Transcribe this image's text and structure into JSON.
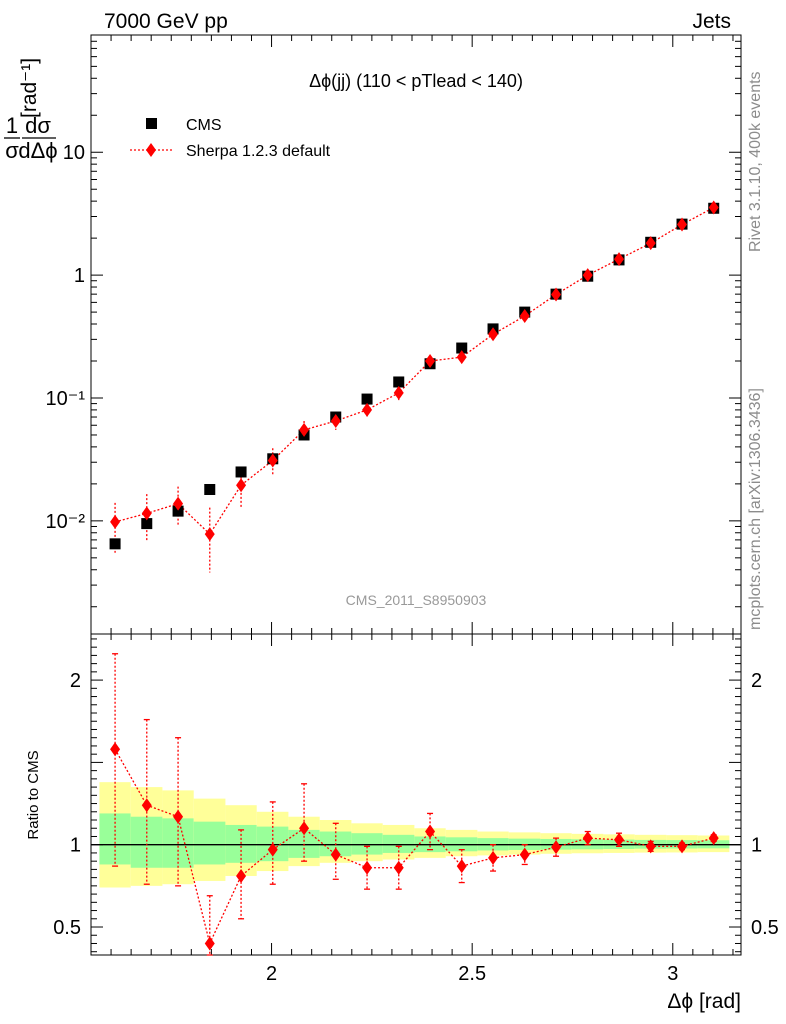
{
  "header": {
    "left": "7000 GeV pp",
    "right": "Jets"
  },
  "side_labels": {
    "rivet": "Rivet 3.1.10,  400k events",
    "mcplots": "mcplots.cern.ch [arXiv:1306.3436]"
  },
  "main_plot": {
    "title": "Δϕ(jj) (110 < pTlead <  140)",
    "analysis_label": "CMS_2011_S8950903",
    "ylabel_unit": "[rad⁻¹]",
    "yaxis_parts": {
      "num": "1",
      "den": "σ",
      "d_num": "dσ",
      "d_den": "dΔϕ"
    },
    "legend": [
      {
        "label": "CMS",
        "marker": "square",
        "color": "#000000"
      },
      {
        "label": "Sherpa 1.2.3 default",
        "marker": "diamond",
        "color": "#ff0000"
      }
    ]
  },
  "ratio_plot": {
    "ylabel": "Ratio to CMS"
  },
  "x_axis_label": "Δϕ [rad]",
  "chart_data": [
    {
      "type": "scatter",
      "scale_y": "log",
      "xlim": [
        1.55,
        3.17
      ],
      "ylim": [
        0.0012,
        90
      ],
      "y_tick_labels": [
        {
          "text": "10⁻²",
          "value": 0.01
        },
        {
          "text": "10⁻¹",
          "value": 0.1
        },
        {
          "text": "1",
          "value": 1
        },
        {
          "text": "10",
          "value": 10
        }
      ],
      "x": [
        1.61,
        1.689,
        1.767,
        1.846,
        1.924,
        2.003,
        2.081,
        2.16,
        2.238,
        2.317,
        2.395,
        2.474,
        2.552,
        2.631,
        2.709,
        2.788,
        2.866,
        2.945,
        3.023,
        3.102
      ],
      "series": [
        {
          "name": "CMS",
          "values": [
            0.0065,
            0.0095,
            0.012,
            0.018,
            0.025,
            0.032,
            0.05,
            0.07,
            0.098,
            0.135,
            0.19,
            0.255,
            0.365,
            0.5,
            0.7,
            0.98,
            1.33,
            1.85,
            2.6,
            3.5
          ]
        },
        {
          "name": "Sherpa 1.2.3 default",
          "values": [
            0.0098,
            0.0115,
            0.0138,
            0.0078,
            0.0195,
            0.031,
            0.055,
            0.065,
            0.08,
            0.11,
            0.2,
            0.215,
            0.33,
            0.465,
            0.695,
            1.0,
            1.35,
            1.82,
            2.58,
            3.55
          ],
          "err_up": [
            0.014,
            0.0165,
            0.019,
            0.0128,
            0.0265,
            0.039,
            0.065,
            0.076,
            0.092,
            0.125,
            0.22,
            0.233,
            0.355,
            0.495,
            0.735,
            1.06,
            1.42,
            1.9,
            2.68,
            3.67
          ],
          "err_down": [
            0.0055,
            0.0068,
            0.009,
            0.0038,
            0.013,
            0.0235,
            0.045,
            0.055,
            0.069,
            0.096,
            0.18,
            0.197,
            0.305,
            0.435,
            0.655,
            0.94,
            1.28,
            1.74,
            2.48,
            3.43
          ]
        }
      ]
    },
    {
      "type": "scatter",
      "ylim": [
        0.33,
        2.28
      ],
      "y_tick_labels": [
        {
          "text": "0.5",
          "value": 0.5
        },
        {
          "text": "1",
          "value": 1
        },
        {
          "text": "2",
          "value": 2
        }
      ],
      "x_tick_labels": [
        {
          "text": "2",
          "value": 2
        },
        {
          "text": "2.5",
          "value": 2.5
        },
        {
          "text": "3",
          "value": 3
        }
      ],
      "reference_line": 1,
      "bin_edges": [
        1.571,
        1.649,
        1.728,
        1.806,
        1.885,
        1.963,
        2.042,
        2.12,
        2.199,
        2.277,
        2.356,
        2.434,
        2.513,
        2.591,
        2.67,
        2.748,
        2.827,
        2.905,
        2.984,
        3.062,
        3.141
      ],
      "band_1sigma": {
        "lower": [
          0.88,
          0.86,
          0.86,
          0.88,
          0.89,
          0.9,
          0.92,
          0.93,
          0.94,
          0.95,
          0.955,
          0.96,
          0.965,
          0.968,
          0.97,
          0.972,
          0.974,
          0.976,
          0.977,
          0.978
        ],
        "upper": [
          1.19,
          1.17,
          1.16,
          1.14,
          1.12,
          1.11,
          1.09,
          1.08,
          1.07,
          1.06,
          1.05,
          1.045,
          1.04,
          1.037,
          1.035,
          1.033,
          1.031,
          1.029,
          1.028,
          1.027
        ]
      },
      "band_2sigma": {
        "lower": [
          0.74,
          0.75,
          0.76,
          0.78,
          0.81,
          0.84,
          0.87,
          0.89,
          0.9,
          0.91,
          0.92,
          0.93,
          0.935,
          0.94,
          0.945,
          0.948,
          0.95,
          0.952,
          0.953,
          0.955
        ],
        "upper": [
          1.38,
          1.35,
          1.33,
          1.28,
          1.24,
          1.2,
          1.17,
          1.15,
          1.13,
          1.12,
          1.1,
          1.09,
          1.08,
          1.075,
          1.07,
          1.066,
          1.063,
          1.06,
          1.058,
          1.056
        ]
      },
      "series": [
        {
          "name": "Sherpa 1.2.3 default",
          "values": [
            1.58,
            1.24,
            1.17,
            0.4,
            0.81,
            0.97,
            1.1,
            0.94,
            0.86,
            0.86,
            1.08,
            0.87,
            0.92,
            0.94,
            0.985,
            1.04,
            1.03,
            0.99,
            0.99,
            1.04
          ],
          "err_up": [
            2.16,
            1.76,
            1.65,
            0.69,
            1.09,
            1.26,
            1.37,
            1.13,
            0.99,
            0.99,
            1.19,
            0.97,
            1.0,
            1.0,
            1.04,
            1.08,
            1.07,
            1.02,
            1.01,
            1.06
          ],
          "err_down": [
            0.87,
            0.76,
            0.75,
            0.33,
            0.55,
            0.76,
            0.9,
            0.79,
            0.73,
            0.73,
            0.97,
            0.77,
            0.84,
            0.88,
            0.93,
            1.0,
            0.99,
            0.96,
            0.97,
            1.02
          ]
        }
      ]
    }
  ]
}
